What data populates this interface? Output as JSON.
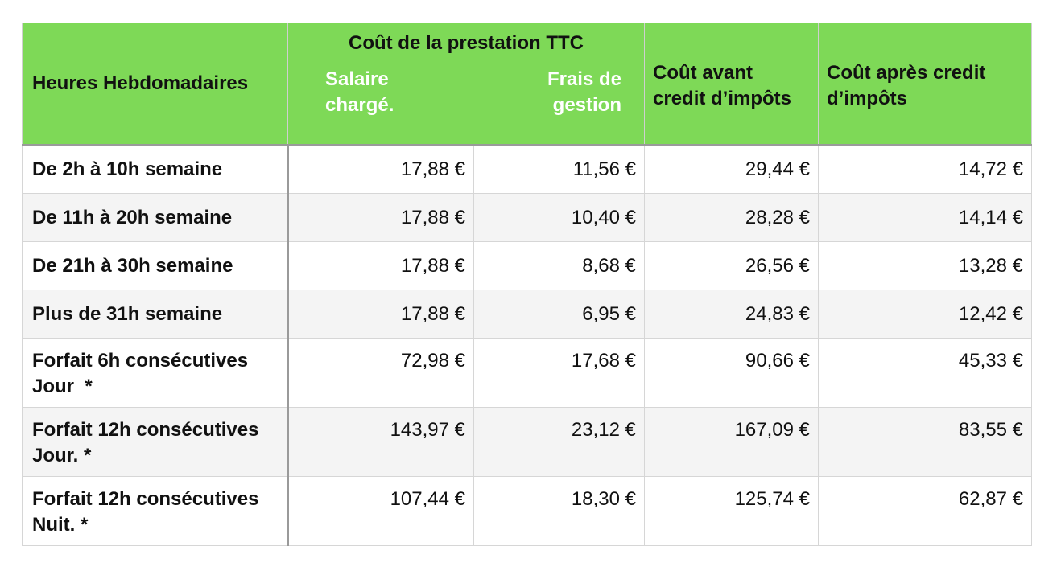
{
  "header": {
    "col1": "Heures Hebdomadaires",
    "group": "Coût de la prestation TTC",
    "salaire_line1": "Salaire",
    "salaire_line2": "chargé.",
    "frais_line1": "Frais de",
    "frais_line2": "gestion",
    "avant_line1": "Coût avant",
    "avant_line2": "credit d’impôts",
    "apres_line1": "Coût après credit",
    "apres_line2": "d’impôts"
  },
  "rows": [
    {
      "label1": "De 2h à 10h semaine",
      "label2": "",
      "salaire": "17,88 €",
      "frais": "11,56 €",
      "avant": "29,44 €",
      "apres": "14,72 €"
    },
    {
      "label1": "De 11h à 20h semaine",
      "label2": "",
      "salaire": "17,88 €",
      "frais": "10,40 €",
      "avant": "28,28 €",
      "apres": "14,14 €"
    },
    {
      "label1": "De 21h à 30h semaine",
      "label2": "",
      "salaire": "17,88 €",
      "frais": "8,68 €",
      "avant": "26,56 €",
      "apres": "13,28 €"
    },
    {
      "label1": "Plus de 31h semaine",
      "label2": "",
      "salaire": "17,88 €",
      "frais": "6,95 €",
      "avant": "24,83 €",
      "apres": "12,42 €"
    },
    {
      "label1": "Forfait 6h consécutives",
      "label2": "Jour  *",
      "salaire": "72,98 €",
      "frais": "17,68 €",
      "avant": "90,66 €",
      "apres": "45,33 €"
    },
    {
      "label1": "Forfait 12h consécutives",
      "label2": "Jour. *",
      "salaire": "143,97 €",
      "frais": "23,12 €",
      "avant": "167,09 €",
      "apres": "83,55 €"
    },
    {
      "label1": "Forfait 12h consécutives",
      "label2": "Nuit. *",
      "salaire": "107,44 €",
      "frais": "18,30 €",
      "avant": "125,74 €",
      "apres": "62,87 €"
    }
  ],
  "colors": {
    "header_bg": "#7ed957",
    "header_sub_text": "#ffffff",
    "row_alt_bg": "#f4f4f4"
  }
}
